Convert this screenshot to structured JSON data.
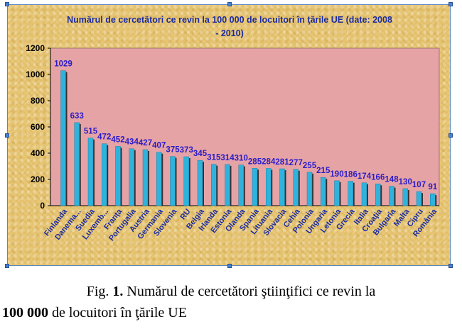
{
  "chart_data": {
    "type": "bar",
    "title": "Numărul de cercetători ce revin la 100 000 de locuitori în ţările UE (date: 2008 - 2010)",
    "title_lines": [
      "Numărul de cercetători ce revin la 100 000 de locuitori în ţările UE (date: 2008",
      "- 2010)"
    ],
    "categories": [
      "Finlanda",
      "Danema...",
      "Suedia",
      "Luxemb...",
      "Franţa",
      "Portugalia",
      "Austria",
      "Germania",
      "Slovenia",
      "RU",
      "Belgia",
      "Irlanda",
      "Estonia",
      "Olanda",
      "Spania",
      "Lituania",
      "Slovacia",
      "Cehia",
      "Polonia",
      "Ungaria",
      "Letonia",
      "Grecia",
      "Italia",
      "Croaţia",
      "Bulgaria",
      "Malta",
      "Cipru",
      "România"
    ],
    "values": [
      1029,
      633,
      515,
      472,
      452,
      434,
      427,
      407,
      375,
      373,
      345,
      315,
      314,
      310,
      285,
      284,
      281,
      277,
      255,
      215,
      190,
      186,
      174,
      166,
      148,
      130,
      107,
      91
    ],
    "y_ticks": [
      "0",
      "200",
      "400",
      "600",
      "800",
      "1000",
      "1200"
    ],
    "ylim": [
      0,
      1200
    ],
    "grid": false,
    "legend": "none",
    "colors": {
      "bar": "#2fb3dd",
      "bar_shadow": "#1a1a1a",
      "plot_bg": "#e6a3a6",
      "title": "#1c2ca0",
      "value_labels": "#2a1cc8",
      "category_labels": "#1c2ca0"
    }
  },
  "caption": {
    "prefix": "Fig. ",
    "number": "1.",
    "text_line1": " Numărul de cercetători ştiinţifici ce revin la",
    "bold_line2": "100 000",
    "text_line2": " de locuitori în ţările UE"
  }
}
